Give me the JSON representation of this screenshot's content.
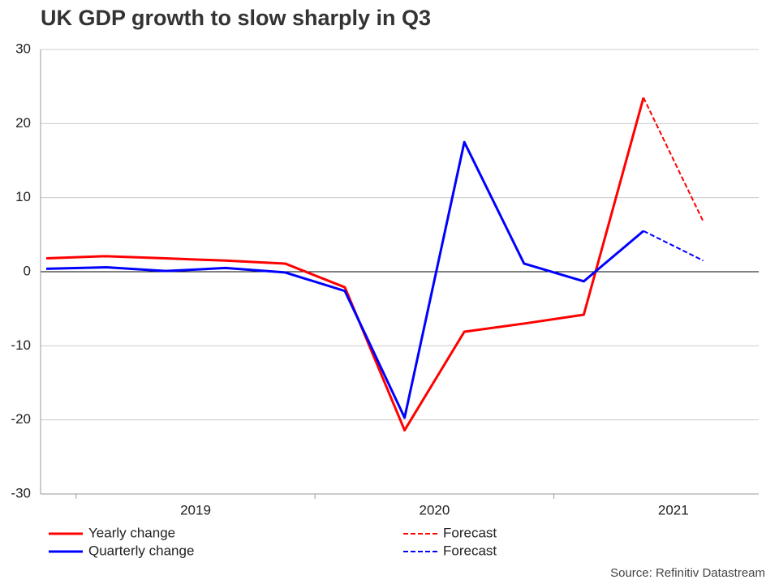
{
  "chart_data": {
    "type": "line",
    "title": "UK GDP growth to slow sharply in Q3",
    "source": "Source: Refinitiv Datastream",
    "categories": [
      null,
      null,
      null,
      null,
      null,
      null,
      null,
      null,
      null,
      null,
      null,
      null
    ],
    "groups": [
      {
        "label": "2019",
        "start": 1,
        "size": 4
      },
      {
        "label": "2020",
        "start": 5,
        "size": 4
      },
      {
        "label": "2021",
        "start": 9,
        "size": 4
      }
    ],
    "series": [
      {
        "name": "Yearly change",
        "color": "#ff0000",
        "style": "solid",
        "values": [
          1.8,
          2.1,
          1.8,
          1.5,
          1.1,
          -2.1,
          -21.4,
          -8.1,
          -7.0,
          -5.8,
          23.5,
          null
        ]
      },
      {
        "name": "Quarterly change",
        "color": "#0000ff",
        "style": "solid",
        "values": [
          0.4,
          0.6,
          0.1,
          0.5,
          -0.1,
          -2.6,
          -19.7,
          17.5,
          1.1,
          -1.3,
          5.5,
          null
        ]
      },
      {
        "name": "Forecast",
        "color": "#ff0000",
        "style": "dashed",
        "values": [
          null,
          null,
          null,
          null,
          null,
          null,
          null,
          null,
          null,
          null,
          23.5,
          6.8
        ]
      },
      {
        "name": "Forecast",
        "color": "#0000ff",
        "style": "dashed",
        "values": [
          null,
          null,
          null,
          null,
          null,
          null,
          null,
          null,
          null,
          null,
          5.5,
          1.5
        ]
      }
    ],
    "ylim": [
      -30,
      30
    ],
    "yticks": [
      -30,
      -20,
      -10,
      0,
      10,
      20,
      30
    ],
    "grid": true
  }
}
